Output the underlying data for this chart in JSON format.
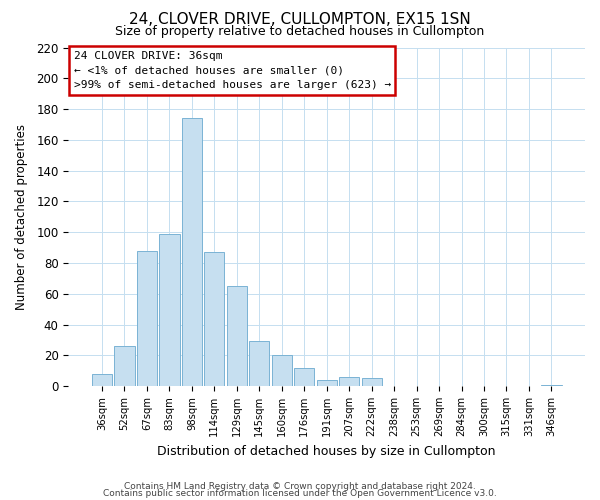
{
  "title": "24, CLOVER DRIVE, CULLOMPTON, EX15 1SN",
  "subtitle": "Size of property relative to detached houses in Cullompton",
  "xlabel": "Distribution of detached houses by size in Cullompton",
  "ylabel": "Number of detached properties",
  "bar_labels": [
    "36sqm",
    "52sqm",
    "67sqm",
    "83sqm",
    "98sqm",
    "114sqm",
    "129sqm",
    "145sqm",
    "160sqm",
    "176sqm",
    "191sqm",
    "207sqm",
    "222sqm",
    "238sqm",
    "253sqm",
    "269sqm",
    "284sqm",
    "300sqm",
    "315sqm",
    "331sqm",
    "346sqm"
  ],
  "bar_values": [
    8,
    26,
    88,
    99,
    174,
    87,
    65,
    29,
    20,
    12,
    4,
    6,
    5,
    0,
    0,
    0,
    0,
    0,
    0,
    0,
    1
  ],
  "bar_color": "#c6dff0",
  "bar_edge_color": "#7ab3d4",
  "ylim": [
    0,
    220
  ],
  "yticks": [
    0,
    20,
    40,
    60,
    80,
    100,
    120,
    140,
    160,
    180,
    200,
    220
  ],
  "annotation_title": "24 CLOVER DRIVE: 36sqm",
  "annotation_line1": "← <1% of detached houses are smaller (0)",
  "annotation_line2": ">99% of semi-detached houses are larger (623) →",
  "annotation_box_color": "#ffffff",
  "annotation_box_edge_color": "#cc0000",
  "footer1": "Contains HM Land Registry data © Crown copyright and database right 2024.",
  "footer2": "Contains public sector information licensed under the Open Government Licence v3.0.",
  "background_color": "#ffffff",
  "grid_color": "#c5dff0"
}
